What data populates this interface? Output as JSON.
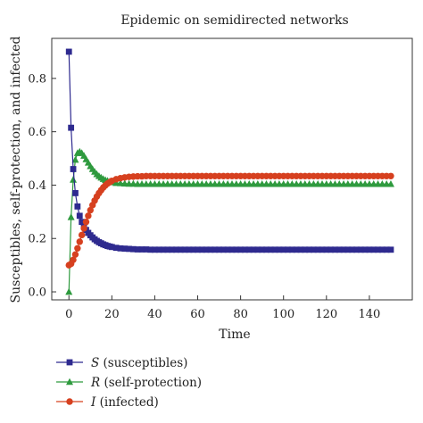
{
  "chart_data": {
    "type": "line",
    "title": "Epidemic on semidirected networks",
    "xlabel": "Time",
    "ylabel": "Susceptibles, self-protection, and infected",
    "xlim": [
      -8,
      160
    ],
    "ylim": [
      -0.03,
      0.95
    ],
    "xticks": [
      0,
      20,
      40,
      60,
      80,
      100,
      120,
      140
    ],
    "yticks": [
      0.0,
      0.2,
      0.4,
      0.6,
      0.8
    ],
    "ytick_labels": [
      "0.0",
      "0.2",
      "0.4",
      "0.6",
      "0.8"
    ],
    "grid": false,
    "legend_placement": "bottom-left, below plot",
    "series": [
      {
        "name": "S (susceptibles)",
        "var": "S",
        "desc": " (susceptibles)",
        "color": "#2e2a8f",
        "marker": "square",
        "x": [
          0,
          1,
          2,
          3,
          4,
          5,
          6,
          7,
          8,
          9,
          10,
          11,
          12,
          13,
          14,
          15,
          16,
          17,
          18,
          19,
          20,
          22,
          24,
          26,
          28,
          30,
          32,
          34,
          36,
          38,
          40,
          42,
          44,
          46,
          48,
          50,
          52,
          54,
          56,
          58,
          60,
          62,
          64,
          66,
          68,
          70,
          72,
          74,
          76,
          78,
          80,
          82,
          84,
          86,
          88,
          90,
          92,
          94,
          96,
          98,
          100,
          102,
          104,
          106,
          108,
          110,
          112,
          114,
          116,
          118,
          120,
          122,
          124,
          126,
          128,
          130,
          132,
          134,
          136,
          138,
          140,
          142,
          144,
          146,
          148,
          150
        ],
        "y": [
          0.9,
          0.615,
          0.46,
          0.37,
          0.32,
          0.285,
          0.262,
          0.245,
          0.232,
          0.221,
          0.212,
          0.204,
          0.197,
          0.191,
          0.186,
          0.182,
          0.178,
          0.175,
          0.172,
          0.17,
          0.168,
          0.165,
          0.163,
          0.162,
          0.161,
          0.16,
          0.159,
          0.159,
          0.159,
          0.158,
          0.158,
          0.158,
          0.158,
          0.158,
          0.158,
          0.158,
          0.158,
          0.158,
          0.158,
          0.158,
          0.158,
          0.158,
          0.158,
          0.158,
          0.158,
          0.158,
          0.158,
          0.158,
          0.158,
          0.158,
          0.158,
          0.158,
          0.158,
          0.158,
          0.158,
          0.158,
          0.158,
          0.158,
          0.158,
          0.158,
          0.158,
          0.158,
          0.158,
          0.158,
          0.158,
          0.158,
          0.158,
          0.158,
          0.158,
          0.158,
          0.158,
          0.158,
          0.158,
          0.158,
          0.158,
          0.158,
          0.158,
          0.158,
          0.158,
          0.158,
          0.158,
          0.158,
          0.158,
          0.158,
          0.158,
          0.158
        ]
      },
      {
        "name": "R (self-protection)",
        "var": "R",
        "desc": " (self-protection)",
        "color": "#2e9a3e",
        "marker": "triangle",
        "x": [
          0,
          1,
          2,
          3,
          4,
          5,
          6,
          7,
          8,
          9,
          10,
          11,
          12,
          13,
          14,
          15,
          16,
          17,
          18,
          19,
          20,
          22,
          24,
          26,
          28,
          30,
          32,
          34,
          36,
          38,
          40,
          42,
          44,
          46,
          48,
          50,
          52,
          54,
          56,
          58,
          60,
          62,
          64,
          66,
          68,
          70,
          72,
          74,
          76,
          78,
          80,
          82,
          84,
          86,
          88,
          90,
          92,
          94,
          96,
          98,
          100,
          102,
          104,
          106,
          108,
          110,
          112,
          114,
          116,
          118,
          120,
          122,
          124,
          126,
          128,
          130,
          132,
          134,
          136,
          138,
          140,
          142,
          144,
          146,
          148,
          150
        ],
        "y": [
          0.0,
          0.28,
          0.42,
          0.495,
          0.52,
          0.525,
          0.52,
          0.51,
          0.497,
          0.484,
          0.471,
          0.46,
          0.45,
          0.441,
          0.434,
          0.428,
          0.423,
          0.419,
          0.416,
          0.413,
          0.411,
          0.408,
          0.407,
          0.406,
          0.405,
          0.405,
          0.404,
          0.404,
          0.404,
          0.404,
          0.404,
          0.404,
          0.404,
          0.404,
          0.404,
          0.404,
          0.404,
          0.404,
          0.404,
          0.404,
          0.404,
          0.404,
          0.404,
          0.404,
          0.404,
          0.404,
          0.404,
          0.404,
          0.404,
          0.404,
          0.404,
          0.404,
          0.404,
          0.404,
          0.404,
          0.404,
          0.404,
          0.404,
          0.404,
          0.404,
          0.404,
          0.404,
          0.404,
          0.404,
          0.404,
          0.404,
          0.404,
          0.404,
          0.404,
          0.404,
          0.404,
          0.404,
          0.404,
          0.404,
          0.404,
          0.404,
          0.404,
          0.404,
          0.404,
          0.404,
          0.404,
          0.404,
          0.404,
          0.404,
          0.404,
          0.404
        ]
      },
      {
        "name": "I (infected)",
        "var": "I",
        "desc": " (infected)",
        "color": "#d6401f",
        "marker": "circle",
        "x": [
          0,
          1,
          2,
          3,
          4,
          5,
          6,
          7,
          8,
          9,
          10,
          11,
          12,
          13,
          14,
          15,
          16,
          17,
          18,
          19,
          20,
          22,
          24,
          26,
          28,
          30,
          32,
          34,
          36,
          38,
          40,
          42,
          44,
          46,
          48,
          50,
          52,
          54,
          56,
          58,
          60,
          62,
          64,
          66,
          68,
          70,
          72,
          74,
          76,
          78,
          80,
          82,
          84,
          86,
          88,
          90,
          92,
          94,
          96,
          98,
          100,
          102,
          104,
          106,
          108,
          110,
          112,
          114,
          116,
          118,
          120,
          122,
          124,
          126,
          128,
          130,
          132,
          134,
          136,
          138,
          140,
          142,
          144,
          146,
          148,
          150
        ],
        "y": [
          0.1,
          0.105,
          0.12,
          0.14,
          0.163,
          0.188,
          0.213,
          0.238,
          0.262,
          0.285,
          0.306,
          0.325,
          0.342,
          0.357,
          0.37,
          0.381,
          0.391,
          0.399,
          0.406,
          0.411,
          0.416,
          0.422,
          0.426,
          0.429,
          0.431,
          0.432,
          0.433,
          0.433,
          0.434,
          0.434,
          0.434,
          0.434,
          0.434,
          0.434,
          0.434,
          0.434,
          0.434,
          0.434,
          0.434,
          0.434,
          0.434,
          0.434,
          0.434,
          0.434,
          0.434,
          0.434,
          0.434,
          0.434,
          0.434,
          0.434,
          0.434,
          0.434,
          0.434,
          0.434,
          0.434,
          0.434,
          0.434,
          0.434,
          0.434,
          0.434,
          0.434,
          0.434,
          0.434,
          0.434,
          0.434,
          0.434,
          0.434,
          0.434,
          0.434,
          0.434,
          0.434,
          0.434,
          0.434,
          0.434,
          0.434,
          0.434,
          0.434,
          0.434,
          0.434,
          0.434,
          0.434,
          0.434,
          0.434,
          0.434,
          0.434,
          0.434
        ]
      }
    ]
  }
}
